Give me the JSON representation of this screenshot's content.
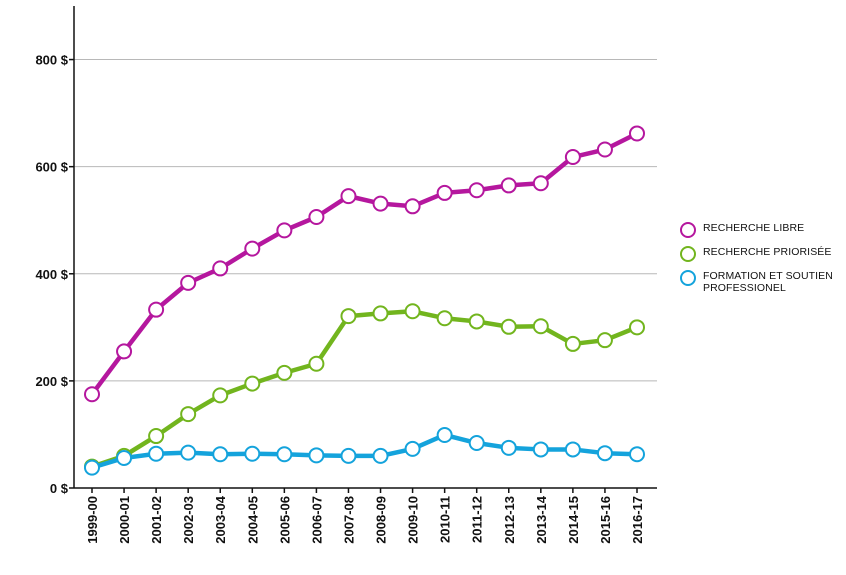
{
  "chart_data": {
    "type": "line",
    "categories": [
      "1999-00",
      "2000-01",
      "2001-02",
      "2002-03",
      "2003-04",
      "2004-05",
      "2005-06",
      "2006-07",
      "2007-08",
      "2008-09",
      "2009-10",
      "2010-11",
      "2011-12",
      "2012-13",
      "2013-14",
      "2014-15",
      "2015-16",
      "2016-17"
    ],
    "y_ticks": [
      "0 $",
      "200 $",
      "400 $",
      "600 $",
      "800 $"
    ],
    "ylim": [
      0,
      900
    ],
    "grid": true,
    "legend_position": "right",
    "series": [
      {
        "name": "RECHERCHE LIBRE",
        "color": "#b5179e",
        "values": [
          175,
          255,
          333,
          383,
          410,
          447,
          481,
          506,
          545,
          531,
          526,
          551,
          556,
          565,
          569,
          618,
          632,
          662
        ]
      },
      {
        "name": "RECHERCHE PRIORISÉE",
        "color": "#72b51e",
        "values": [
          40,
          60,
          97,
          138,
          173,
          195,
          215,
          232,
          321,
          326,
          330,
          317,
          311,
          301,
          302,
          269,
          276,
          300
        ]
      },
      {
        "name": "FORMATION ET SOUTIEN\n PROFESSIONEL",
        "color": "#14a3dc",
        "values": [
          38,
          56,
          64,
          66,
          63,
          64,
          63,
          61,
          60,
          60,
          73,
          99,
          84,
          75,
          72,
          72,
          65,
          63
        ]
      }
    ]
  }
}
